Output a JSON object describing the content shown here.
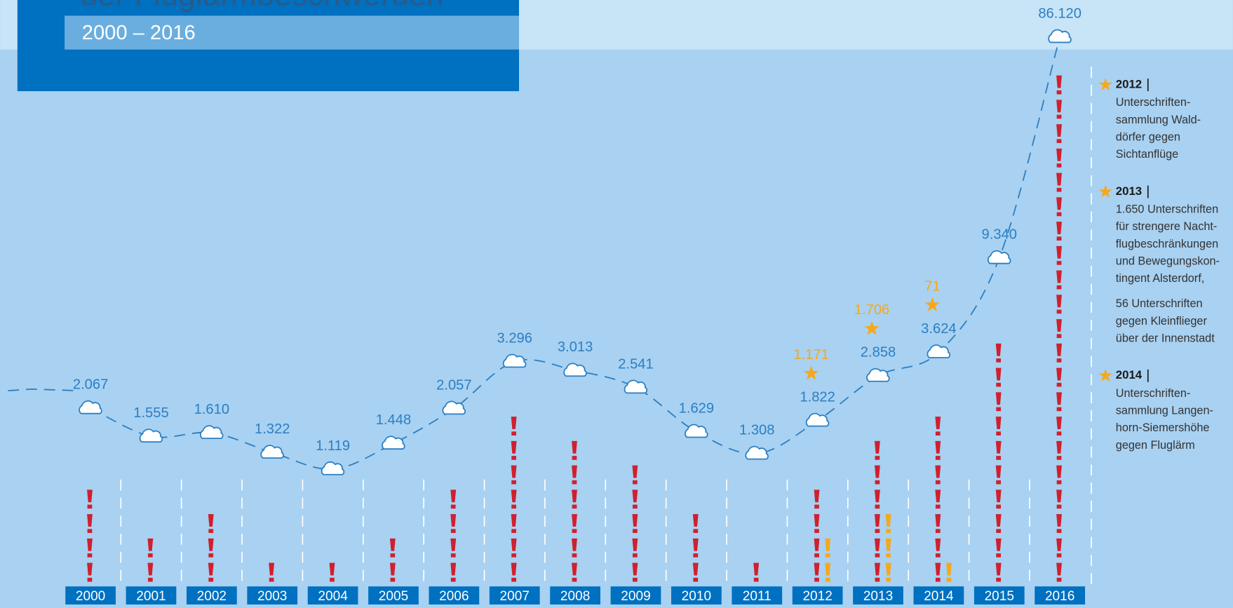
{
  "chart_data": {
    "type": "line",
    "title": "der Fluglärmbeschwerden",
    "subtitle": "2000 – 2016",
    "categories": [
      "2000",
      "2001",
      "2002",
      "2003",
      "2004",
      "2005",
      "2006",
      "2007",
      "2008",
      "2009",
      "2010",
      "2011",
      "2012",
      "2013",
      "2014",
      "2015",
      "2016"
    ],
    "log_scale": true,
    "ylim": [
      1000,
      100000
    ],
    "series": [
      {
        "color": "#2a7fc4",
        "values": [
          2067,
          1555,
          1610,
          1322,
          1119,
          1448,
          2057,
          3296,
          3013,
          2541,
          1629,
          1308,
          1822,
          2858,
          3624,
          9340,
          86120
        ],
        "value_labels": [
          "2.067",
          "1.555",
          "1.610",
          "1.322",
          "1.119",
          "1.448",
          "2.057",
          "3.296",
          "3.013",
          "2.541",
          "1.629",
          "1.308",
          "1.822",
          "2.858",
          "3.624",
          "9.340",
          "86.120"
        ]
      },
      {
        "color": "#f5a81c",
        "values": [
          null,
          null,
          null,
          null,
          null,
          null,
          null,
          null,
          null,
          null,
          null,
          null,
          1171,
          1706,
          71,
          null,
          null
        ],
        "value_labels": [
          null,
          null,
          null,
          null,
          null,
          null,
          null,
          null,
          null,
          null,
          null,
          null,
          "1.171",
          "1.706",
          "71",
          null,
          null
        ]
      }
    ],
    "icon_counts": [
      {
        "color": "#d0202e",
        "values": [
          4,
          2,
          3,
          1,
          1,
          2,
          4,
          7,
          6,
          5,
          3,
          1,
          4,
          6,
          7,
          10,
          21
        ]
      },
      {
        "color": "#f5a81c",
        "values": [
          0,
          0,
          0,
          0,
          0,
          0,
          0,
          0,
          0,
          0,
          0,
          0,
          2,
          3,
          1,
          0,
          0
        ]
      }
    ],
    "annotations": [
      {
        "year": "2012",
        "paragraphs": [
          [
            "Unterschriften-",
            "sammlung Wald-",
            "dörfer gegen",
            "Sichtanflüge"
          ]
        ]
      },
      {
        "year": "2013",
        "paragraphs": [
          [
            "1.650 Unterschriften",
            "für strengere Nacht-",
            "flugbeschränkungen",
            "und Bewegungskon-",
            "tingent Alsterdorf,"
          ],
          [
            "56 Unterschriften",
            "gegen Kleinflieger",
            "über der Innenstadt"
          ]
        ]
      },
      {
        "year": "2014",
        "paragraphs": [
          [
            "Unterschriften-",
            "sammlung Langen-",
            "horn-Siemershöhe",
            "gegen Fluglärm"
          ]
        ]
      }
    ]
  }
}
